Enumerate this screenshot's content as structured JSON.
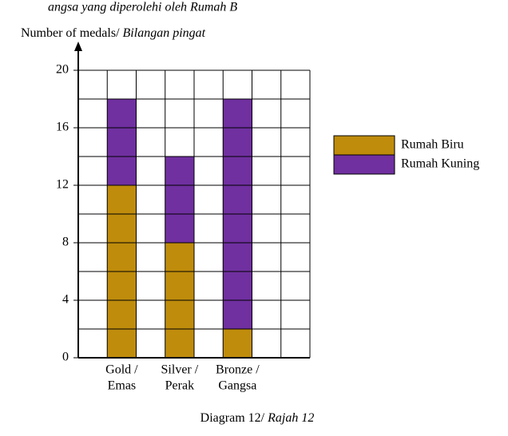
{
  "header_fragment": "angsa yang diperolehi oleh Rumah B",
  "chart_data": {
    "type": "stacked_bar",
    "y_label": {
      "text": "Number of medals/",
      "italic": "Bilangan pingat"
    },
    "categories": [
      [
        "Gold /",
        "Emas"
      ],
      [
        "Silver /",
        "Perak"
      ],
      [
        "Bronze /",
        "Gangsa"
      ]
    ],
    "series": [
      {
        "name": "Rumah Biru",
        "color": "#bf8c0c",
        "values": [
          12,
          8,
          2
        ]
      },
      {
        "name": "Rumah Kuning",
        "color": "#7030a0",
        "values": [
          6,
          6,
          16
        ]
      }
    ],
    "ylim": [
      0,
      20
    ],
    "yticks": [
      0,
      4,
      8,
      12,
      16,
      20
    ],
    "grid": true,
    "legend": "right"
  },
  "caption": {
    "text": "Diagram 12/",
    "italic": "Rajah 12"
  }
}
